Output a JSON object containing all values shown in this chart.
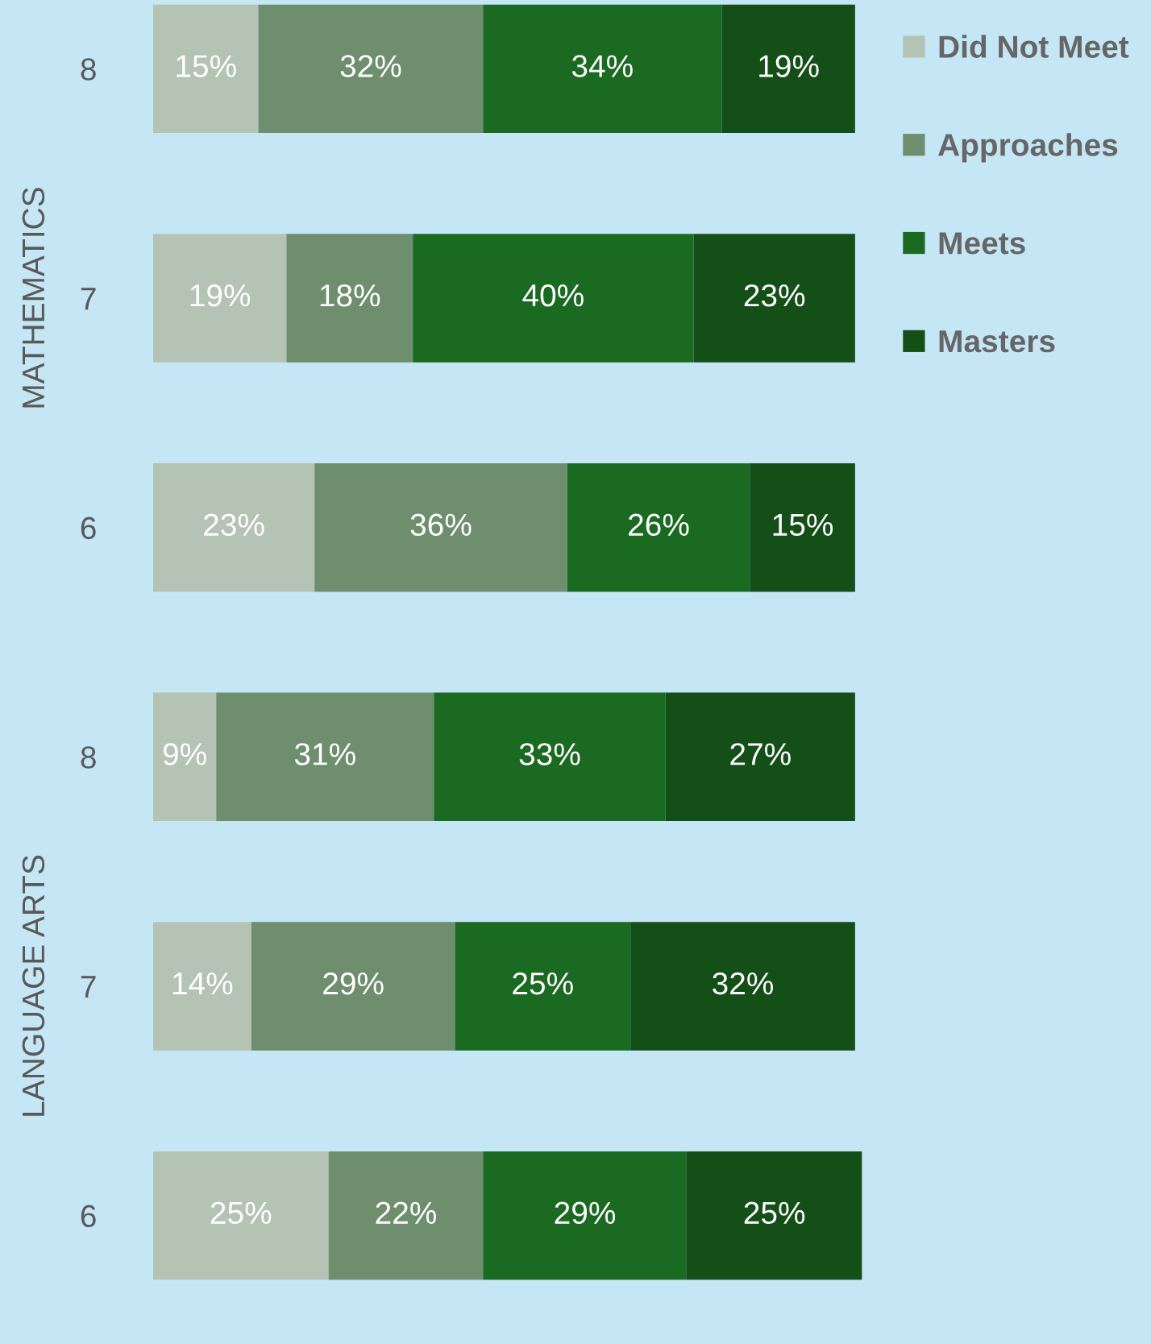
{
  "chart_data": {
    "type": "bar",
    "orientation": "horizontal",
    "stacked": true,
    "categories": [
      "8",
      "7",
      "6",
      "8",
      "7",
      "6"
    ],
    "series": [
      {
        "name": "Did Not Meet",
        "color": "#b4c3b3",
        "values": [
          15,
          19,
          23,
          9,
          14,
          25
        ],
        "value_labels": [
          "15%",
          "19%",
          "23%",
          "9%",
          "14%",
          "25%"
        ]
      },
      {
        "name": "Approaches",
        "color": "#6e8e6e",
        "values": [
          32,
          18,
          36,
          31,
          29,
          22
        ],
        "value_labels": [
          "32%",
          "18%",
          "36%",
          "31%",
          "29%",
          "22%"
        ]
      },
      {
        "name": "Meets",
        "color": "#1b6a22",
        "values": [
          34,
          40,
          26,
          33,
          25,
          29
        ],
        "value_labels": [
          "34%",
          "40%",
          "26%",
          "33%",
          "25%",
          "29%"
        ]
      },
      {
        "name": "Masters",
        "color": "#144f18",
        "values": [
          19,
          23,
          15,
          27,
          32,
          25
        ],
        "value_labels": [
          "19%",
          "23%",
          "15%",
          "27%",
          "32%",
          "25%"
        ]
      }
    ],
    "xlim": [
      0,
      101
    ],
    "tick_labels": "y",
    "annotations": [
      "MATHEMATICS",
      "LANGUAGE ARTS"
    ],
    "legend": "top right",
    "grid": false
  }
}
